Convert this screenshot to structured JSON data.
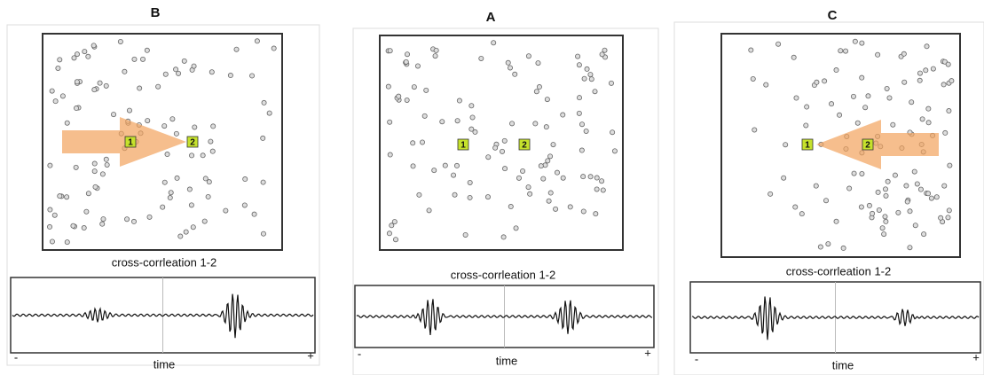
{
  "panels": [
    {
      "label": "B",
      "stations": [
        "1",
        "2"
      ],
      "caption": "cross-corrleation 1-2",
      "axis_label": "time",
      "axis_min": "-",
      "axis_max": "+"
    },
    {
      "label": "A",
      "stations": [
        "1",
        "2"
      ],
      "caption": "cross-corrleation 1-2",
      "axis_label": "time",
      "axis_min": "-",
      "axis_max": "+"
    },
    {
      "label": "C",
      "stations": [
        "1",
        "2"
      ],
      "caption": "cross-corrleation 1-2",
      "axis_label": "time",
      "axis_min": "-",
      "axis_max": "+"
    }
  ]
}
